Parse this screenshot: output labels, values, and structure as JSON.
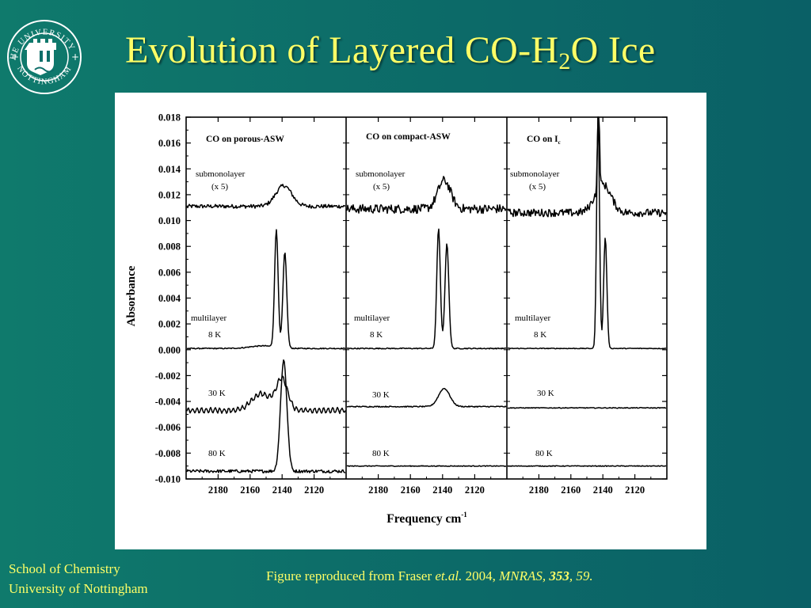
{
  "slide": {
    "title_main": "Evolution of Layered CO-H",
    "title_sub": "2",
    "title_end": "O Ice",
    "footer_line1": "School of Chemistry",
    "footer_line2": "University of Nottingham",
    "caption_plain": "Figure reproduced from Fraser ",
    "caption_etal": "et.al.",
    "caption_year": " 2004, ",
    "caption_journal": "MNRAS,",
    "caption_volume": "353",
    "caption_page": ", 59."
  },
  "logo": {
    "ring_top": "THE UNIVERSITY OF",
    "ring_bottom": "NOTTINGHAM",
    "icon": "castle-shield-icon"
  },
  "colors": {
    "background": "#0d6e69",
    "title": "#ffff66",
    "figure_bg": "#ffffff"
  },
  "chart_data": {
    "type": "line",
    "ylabel": "Absorbance",
    "xlabel": "Frequency cm",
    "xlabel_sup": "-1",
    "ylim": [
      -0.01,
      0.018
    ],
    "yticks": [
      "0.018",
      "0.016",
      "0.014",
      "0.012",
      "0.010",
      "0.008",
      "0.006",
      "0.004",
      "0.002",
      "0.000",
      "-0.002",
      "-0.004",
      "-0.006",
      "-0.008",
      "-0.010"
    ],
    "xlim": [
      2200,
      2100
    ],
    "xticks": [
      "2180",
      "2160",
      "2140",
      "2120"
    ],
    "panels": [
      {
        "title": "CO on porous-ASW",
        "labels": [
          "submonolayer",
          "(x 5)",
          "multilayer",
          "8 K",
          "30 K",
          "80 K"
        ],
        "series": [
          {
            "label": "submonolayer",
            "baseline": 0.0111,
            "noise": 0.00015,
            "peaks": [
              {
                "center": 2139,
                "amp": 0.0016,
                "width": 5
              }
            ]
          },
          {
            "label": "8 K",
            "baseline": 0.0001,
            "noise": 4e-05,
            "peaks": [
              {
                "center": 2152,
                "amp": 0.0002,
                "width": 8
              },
              {
                "center": 2143.6,
                "amp": 0.0091,
                "width": 1.1
              },
              {
                "center": 2138.3,
                "amp": 0.0074,
                "width": 1.2
              }
            ]
          },
          {
            "label": "30 K",
            "baseline": -0.0047,
            "noise": 6e-05,
            "ripple": 0.00018,
            "peaks": [
              {
                "center": 2153,
                "amp": 0.0013,
                "width": 6
              },
              {
                "center": 2140,
                "amp": 0.0024,
                "width": 3.5
              }
            ]
          },
          {
            "label": "80 K",
            "baseline": -0.0094,
            "noise": 0.00012,
            "peaks": [
              {
                "center": 2139,
                "amp": 0.0086,
                "width": 2
              }
            ]
          }
        ]
      },
      {
        "title": "CO on compact-ASW",
        "labels": [
          "submonolayer",
          "(x 5)",
          "multilayer",
          "8 K",
          "30 K",
          "80 K"
        ],
        "series": [
          {
            "label": "submonolayer",
            "baseline": 0.0109,
            "noise": 0.00035,
            "peaks": [
              {
                "center": 2139,
                "amp": 0.0022,
                "width": 4
              }
            ]
          },
          {
            "label": "8 K",
            "baseline": 0.0001,
            "noise": 4e-05,
            "peaks": [
              {
                "center": 2142.5,
                "amp": 0.0093,
                "width": 1.1
              },
              {
                "center": 2137.3,
                "amp": 0.0081,
                "width": 1.2
              }
            ]
          },
          {
            "label": "30 K",
            "baseline": -0.0044,
            "noise": 4e-05,
            "peaks": [
              {
                "center": 2139,
                "amp": 0.0014,
                "width": 3.5
              }
            ]
          },
          {
            "label": "80 K",
            "baseline": -0.009,
            "noise": 3e-05,
            "peaks": []
          }
        ]
      },
      {
        "title": "CO on I",
        "title_sub": "c",
        "labels": [
          "submonolayer",
          "(x 5)",
          "multilayer",
          "8 K",
          "30 K",
          "80 K"
        ],
        "series": [
          {
            "label": "submonolayer",
            "baseline": 0.0106,
            "noise": 0.0003,
            "peaks": [
              {
                "center": 2140,
                "amp": 0.0022,
                "width": 5
              },
              {
                "center": 2142.7,
                "amp": 0.0072,
                "width": 0.6
              }
            ]
          },
          {
            "label": "8 K",
            "baseline": 0.0001,
            "noise": 3e-05,
            "peaks": [
              {
                "center": 2143,
                "amp": 0.018,
                "width": 0.9
              },
              {
                "center": 2138.5,
                "amp": 0.0086,
                "width": 1.0
              }
            ]
          },
          {
            "label": "30 K",
            "baseline": -0.0045,
            "noise": 3e-05,
            "peaks": []
          },
          {
            "label": "80 K",
            "baseline": -0.009,
            "noise": 3e-05,
            "peaks": []
          }
        ]
      }
    ]
  }
}
